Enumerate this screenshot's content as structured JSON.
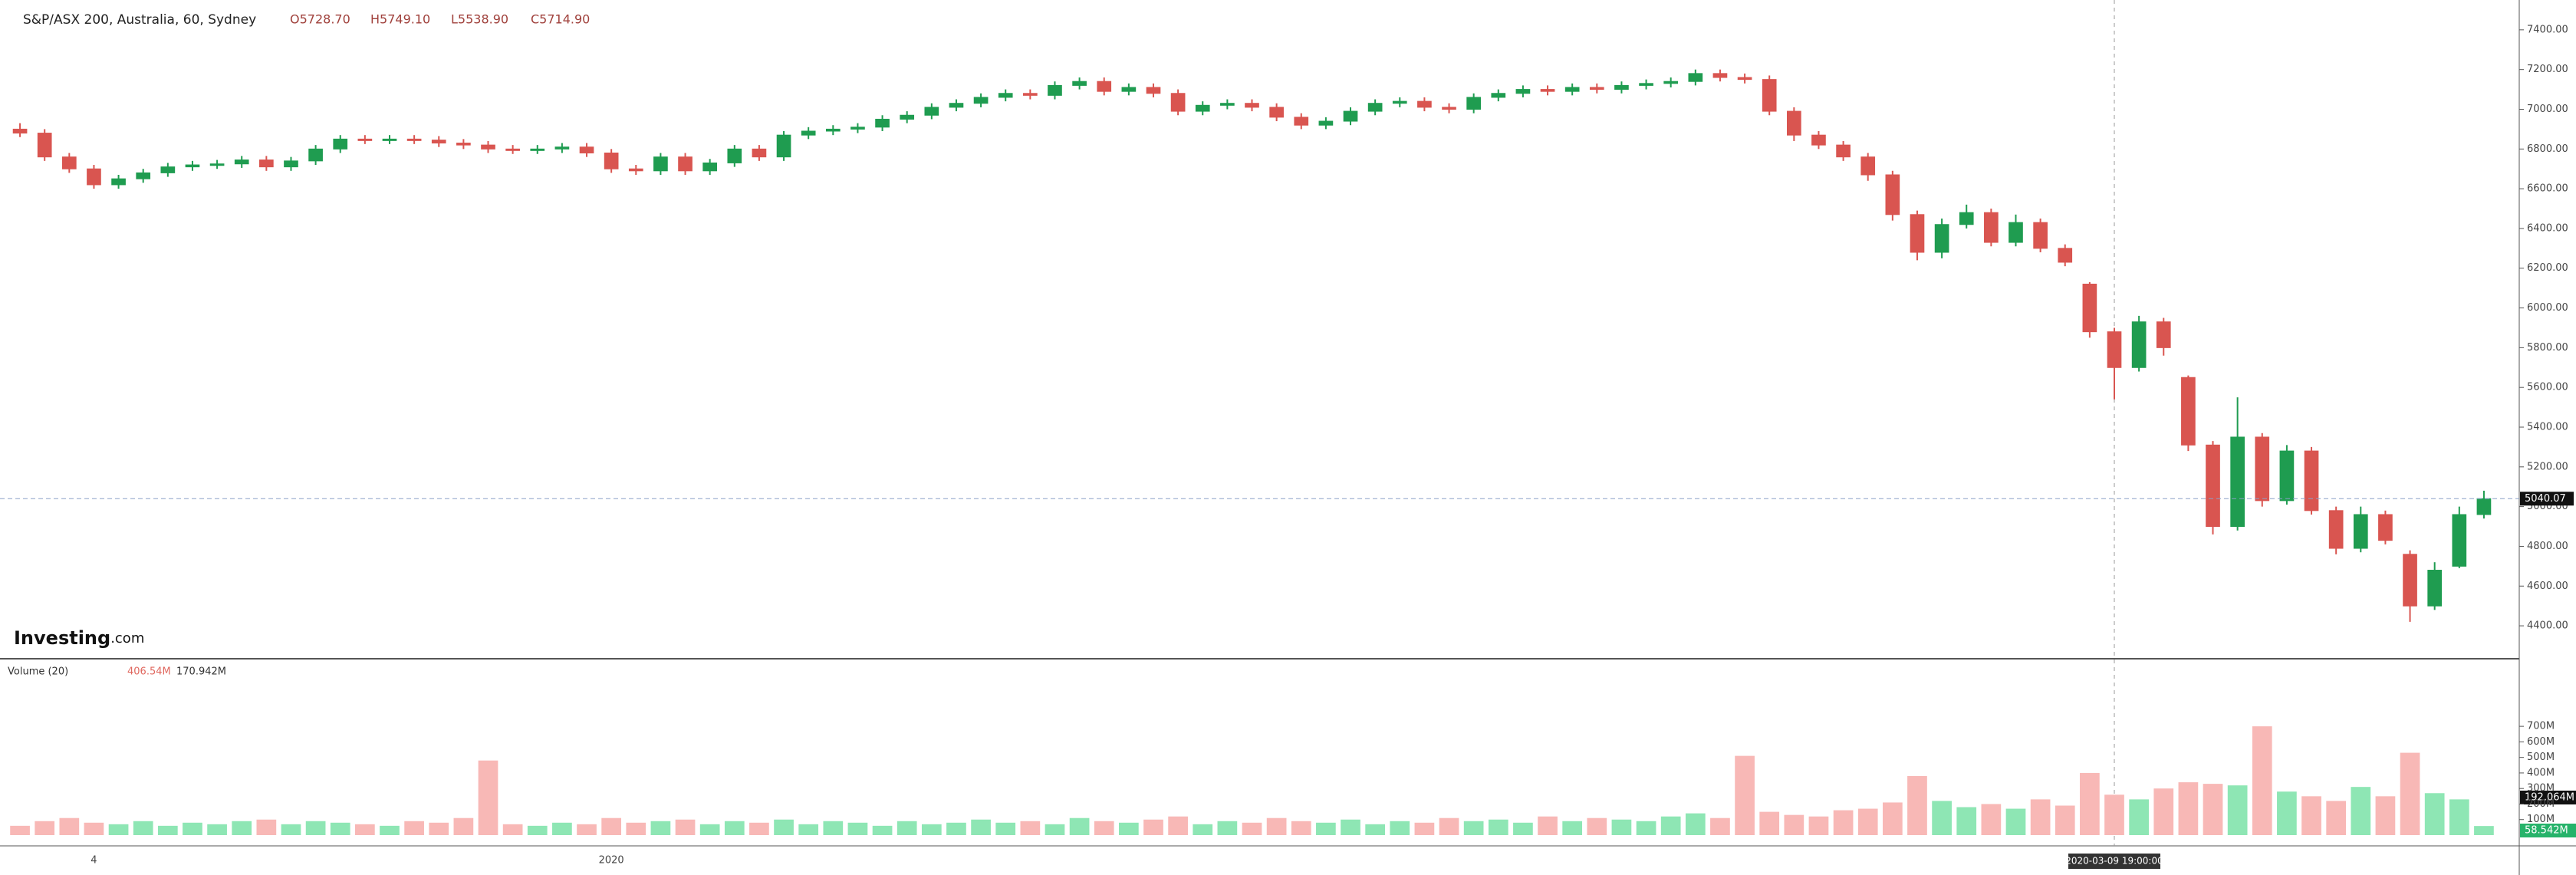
{
  "chart_data": [
    {
      "type": "candlestick",
      "title": "S&P/ASX 200, Australia, 60, Sydney",
      "ohlc_labels": [
        "O5728.70",
        "H5749.10",
        "L5538.90",
        "C5714.90"
      ],
      "logo_name": "Investing",
      "logo_suffix": ".com",
      "last_price_label": "5040.07",
      "crosshair_label": "2020-03-09 19:00:00",
      "up_color": "#1f9c50",
      "down_color": "#d95550",
      "categories": [
        null,
        null,
        null,
        "4",
        null,
        null,
        null,
        null,
        null,
        null,
        null,
        null,
        null,
        null,
        null,
        null,
        null,
        null,
        null,
        null,
        null,
        null,
        null,
        null,
        "2020",
        null,
        null,
        null,
        null,
        null,
        null,
        null,
        null,
        null,
        null,
        null,
        null,
        null,
        null,
        null,
        null,
        null,
        null,
        null,
        null,
        null,
        null,
        null,
        null,
        null,
        null,
        null,
        null,
        null,
        null,
        null,
        null,
        null,
        null,
        null,
        null,
        null,
        null,
        null,
        null,
        null,
        null,
        null,
        null,
        null,
        null,
        null,
        null,
        null,
        null,
        null,
        null,
        null,
        null,
        null,
        null,
        null,
        null,
        null,
        null,
        null,
        null,
        null,
        null,
        null,
        null,
        null,
        null,
        null,
        null,
        null,
        null,
        null,
        null,
        null,
        null
      ],
      "open": [
        6900,
        6880,
        6760,
        6700,
        6620,
        6650,
        6680,
        6710,
        6720,
        6725,
        6745,
        6710,
        6740,
        6800,
        6850,
        6845,
        6850,
        6845,
        6830,
        6820,
        6800,
        6795,
        6800,
        6810,
        6780,
        6700,
        6690,
        6760,
        6690,
        6730,
        6800,
        6760,
        6870,
        6890,
        6900,
        6910,
        6950,
        6970,
        7010,
        7030,
        7060,
        7080,
        7070,
        7120,
        7140,
        7090,
        7110,
        7080,
        6990,
        7020,
        7030,
        7010,
        6960,
        6920,
        6940,
        6990,
        7030,
        7040,
        7010,
        7000,
        7060,
        7080,
        7100,
        7090,
        7110,
        7100,
        7120,
        7130,
        7140,
        7180,
        7160,
        7150,
        6990,
        6870,
        6820,
        6760,
        6670,
        6470,
        6280,
        6420,
        6480,
        6330,
        6430,
        6300,
        6120,
        5880,
        5700,
        5930,
        5650,
        5310,
        4900,
        5350,
        5030,
        5280,
        4980,
        4790,
        4960,
        4760,
        4500,
        4700,
        4960
      ],
      "high": [
        6930,
        6900,
        6780,
        6720,
        6670,
        6700,
        6730,
        6740,
        6745,
        6765,
        6765,
        6760,
        6820,
        6870,
        6870,
        6870,
        6870,
        6865,
        6850,
        6840,
        6820,
        6820,
        6830,
        6830,
        6800,
        6720,
        6780,
        6780,
        6750,
        6820,
        6820,
        6890,
        6910,
        6920,
        6930,
        6970,
        6990,
        7030,
        7050,
        7080,
        7100,
        7100,
        7140,
        7160,
        7160,
        7130,
        7130,
        7100,
        7040,
        7050,
        7050,
        7030,
        6980,
        6960,
        7010,
        7050,
        7060,
        7060,
        7030,
        7080,
        7100,
        7120,
        7120,
        7130,
        7130,
        7140,
        7150,
        7160,
        7200,
        7200,
        7180,
        7170,
        7010,
        6890,
        6840,
        6780,
        6690,
        6490,
        6450,
        6520,
        6500,
        6470,
        6450,
        6320,
        6130,
        5900,
        5960,
        5950,
        5660,
        5330,
        5550,
        5370,
        5310,
        5300,
        5000,
        5000,
        4980,
        4780,
        4720,
        5000,
        5080
      ],
      "low": [
        6860,
        6740,
        6680,
        6600,
        6600,
        6630,
        6660,
        6690,
        6700,
        6705,
        6690,
        6690,
        6720,
        6780,
        6825,
        6825,
        6825,
        6810,
        6800,
        6780,
        6775,
        6775,
        6780,
        6760,
        6680,
        6670,
        6670,
        6670,
        6670,
        6710,
        6740,
        6740,
        6850,
        6870,
        6880,
        6890,
        6930,
        6950,
        6990,
        7010,
        7040,
        7050,
        7050,
        7100,
        7070,
        7070,
        7060,
        6970,
        6970,
        7000,
        6990,
        6940,
        6900,
        6900,
        6920,
        6970,
        7010,
        6990,
        6980,
        6980,
        7040,
        7060,
        7070,
        7070,
        7080,
        7080,
        7100,
        7110,
        7120,
        7140,
        7130,
        6970,
        6840,
        6800,
        6740,
        6640,
        6440,
        6240,
        6250,
        6400,
        6310,
        6310,
        6280,
        6210,
        5850,
        5540,
        5680,
        5760,
        5280,
        4860,
        4880,
        5000,
        5010,
        4960,
        4760,
        4770,
        4810,
        4420,
        4480,
        4690,
        4940
      ],
      "close": [
        6880,
        6760,
        6700,
        6620,
        6650,
        6680,
        6710,
        6720,
        6725,
        6745,
        6710,
        6740,
        6800,
        6850,
        6845,
        6850,
        6845,
        6830,
        6820,
        6800,
        6795,
        6800,
        6810,
        6780,
        6700,
        6690,
        6760,
        6690,
        6730,
        6800,
        6760,
        6870,
        6890,
        6900,
        6910,
        6950,
        6970,
        7010,
        7030,
        7060,
        7080,
        7070,
        7120,
        7140,
        7090,
        7110,
        7080,
        6990,
        7020,
        7030,
        7010,
        6960,
        6920,
        6940,
        6990,
        7030,
        7040,
        7010,
        7000,
        7060,
        7080,
        7100,
        7090,
        7110,
        7100,
        7120,
        7130,
        7140,
        7180,
        7160,
        7150,
        6990,
        6870,
        6820,
        6760,
        6670,
        6470,
        6280,
        6420,
        6480,
        6330,
        6430,
        6300,
        6230,
        5880,
        5700,
        5930,
        5800,
        5310,
        4900,
        5350,
        5030,
        5280,
        4980,
        4790,
        4960,
        4830,
        4500,
        4680,
        4960,
        5040
      ],
      "ylim": [
        4242,
        7550
      ],
      "yticks": [
        {
          "value": 4400,
          "label": "4400.00"
        },
        {
          "value": 4600,
          "label": "4600.00"
        },
        {
          "value": 4800,
          "label": "4800.00"
        },
        {
          "value": 5000,
          "label": "5000.00"
        },
        {
          "value": 5200,
          "label": "5200.00"
        },
        {
          "value": 5400,
          "label": "5400.00"
        },
        {
          "value": 5600,
          "label": "5600.00"
        },
        {
          "value": 5800,
          "label": "5800.00"
        },
        {
          "value": 6000,
          "label": "6000.00"
        },
        {
          "value": 6200,
          "label": "6200.00"
        },
        {
          "value": 6400,
          "label": "6400.00"
        },
        {
          "value": 6600,
          "label": "6600.00"
        },
        {
          "value": 6800,
          "label": "6800.00"
        },
        {
          "value": 7000,
          "label": "7000.00"
        },
        {
          "value": 7200,
          "label": "7200.00"
        },
        {
          "value": 7400,
          "label": "7400.00"
        }
      ]
    },
    {
      "type": "bar",
      "title": "Volume (20)",
      "header_values": [
        "406.54M",
        "170.942M"
      ],
      "side_labels": [
        "192.064M",
        "58.542M"
      ],
      "values": [
        60,
        90,
        110,
        80,
        70,
        90,
        60,
        80,
        70,
        90,
        100,
        70,
        90,
        80,
        70,
        60,
        90,
        80,
        110,
        480,
        70,
        60,
        80,
        70,
        110,
        80,
        90,
        100,
        70,
        90,
        80,
        100,
        70,
        90,
        80,
        60,
        90,
        70,
        80,
        100,
        80,
        90,
        70,
        110,
        90,
        80,
        100,
        120,
        70,
        90,
        80,
        110,
        90,
        80,
        100,
        70,
        90,
        80,
        110,
        90,
        100,
        80,
        120,
        90,
        110,
        100,
        90,
        120,
        140,
        110,
        510,
        150,
        130,
        120,
        160,
        170,
        210,
        380,
        220,
        180,
        200,
        170,
        230,
        190,
        400,
        260,
        230,
        300,
        340,
        330,
        320,
        700,
        280,
        250,
        220,
        310,
        250,
        530,
        270,
        230,
        58.542
      ],
      "ylim": [
        0,
        1120
      ],
      "yticks": [
        {
          "value": 100,
          "label": "100M"
        },
        {
          "value": 200,
          "label": "200M"
        },
        {
          "value": 300,
          "label": "300M"
        },
        {
          "value": 400,
          "label": "400M"
        },
        {
          "value": 500,
          "label": "500M"
        },
        {
          "value": 600,
          "label": "600M"
        },
        {
          "value": 700,
          "label": "700M"
        }
      ]
    }
  ]
}
